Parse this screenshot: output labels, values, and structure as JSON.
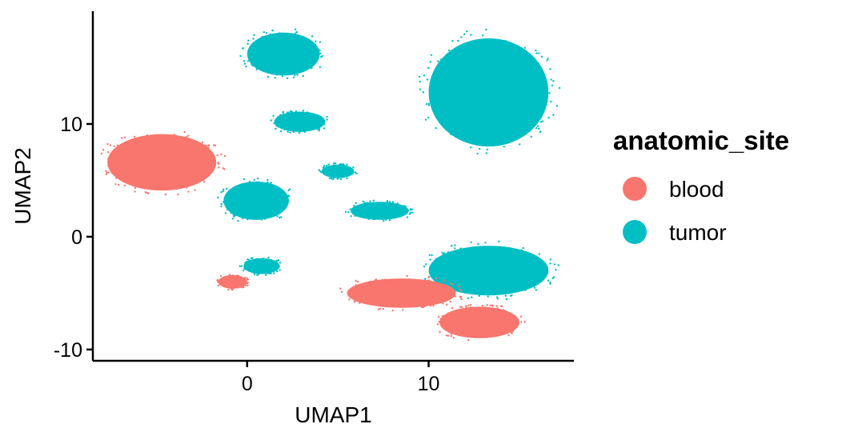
{
  "chart_data": {
    "type": "scatter",
    "xlabel": "UMAP1",
    "ylabel": "UMAP2",
    "xlim": [
      -8.5,
      18
    ],
    "ylim": [
      -11,
      20
    ],
    "x_ticks": [
      {
        "value": 0,
        "label": "0"
      },
      {
        "value": 10,
        "label": "10"
      }
    ],
    "y_ticks": [
      {
        "value": -10,
        "label": "-10"
      },
      {
        "value": 0,
        "label": "0"
      },
      {
        "value": 10,
        "label": "10"
      }
    ],
    "grid": false,
    "legend": {
      "title": "anatomic_site",
      "placement": "right",
      "entries": [
        {
          "label": "blood",
          "color": "#F8766D"
        },
        {
          "label": "tumor",
          "color": "#00BFC4"
        }
      ]
    },
    "series": [
      {
        "name": "tumor",
        "color": "#00BFC4",
        "clusters": [
          {
            "cx": 2.0,
            "cy": 16.2,
            "rx": 2.0,
            "ry": 1.9
          },
          {
            "cx": 2.9,
            "cy": 10.2,
            "rx": 1.4,
            "ry": 0.9
          },
          {
            "cx": 5.0,
            "cy": 5.8,
            "rx": 0.9,
            "ry": 0.6
          },
          {
            "cx": 7.3,
            "cy": 2.3,
            "rx": 1.6,
            "ry": 0.8
          },
          {
            "cx": 0.5,
            "cy": 3.2,
            "rx": 1.8,
            "ry": 1.7
          },
          {
            "cx": 0.8,
            "cy": -2.6,
            "rx": 1.0,
            "ry": 0.7
          },
          {
            "cx": 13.3,
            "cy": 12.8,
            "rx": 3.3,
            "ry": 4.8
          },
          {
            "cx": 13.3,
            "cy": -3.0,
            "rx": 3.3,
            "ry": 2.2
          }
        ]
      },
      {
        "name": "blood",
        "color": "#F8766D",
        "clusters": [
          {
            "cx": -4.7,
            "cy": 6.6,
            "rx": 3.0,
            "ry": 2.5
          },
          {
            "cx": -0.8,
            "cy": -4.0,
            "rx": 0.8,
            "ry": 0.6
          },
          {
            "cx": 8.5,
            "cy": -5.0,
            "rx": 3.0,
            "ry": 1.3
          },
          {
            "cx": 12.8,
            "cy": -7.6,
            "rx": 2.2,
            "ry": 1.4
          }
        ]
      }
    ]
  }
}
